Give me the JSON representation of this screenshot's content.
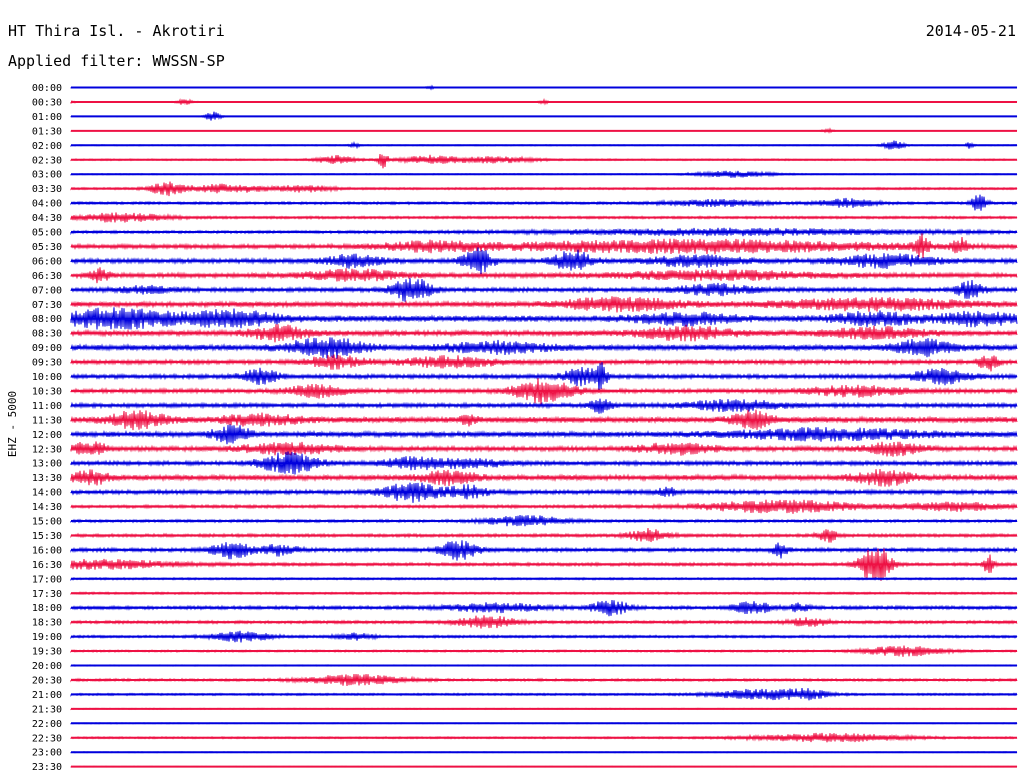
{
  "chart_data": {
    "type": "line",
    "title": "HT Thira Isl. - Akrotiri",
    "date": "2014-05-21",
    "subtitle": "Applied filter: WWSSN-SP",
    "ylabel": "EHZ - 5000",
    "xlabel": "",
    "series_colors": [
      "#0000dd",
      "#ee1144"
    ],
    "rows": [
      {
        "label": "00:00",
        "noise": 0.3,
        "events": [
          [
            0.38,
            2,
            0.004
          ]
        ]
      },
      {
        "label": "00:30",
        "noise": 0.2,
        "events": [
          [
            0.0,
            2,
            0.004
          ],
          [
            0.12,
            3,
            0.01
          ],
          [
            0.5,
            2,
            0.006
          ]
        ]
      },
      {
        "label": "01:00",
        "noise": 0.25,
        "events": [
          [
            0.15,
            5,
            0.008
          ]
        ]
      },
      {
        "label": "01:30",
        "noise": 0.2,
        "events": [
          [
            0.8,
            2,
            0.006
          ]
        ]
      },
      {
        "label": "02:00",
        "noise": 0.6,
        "events": [
          [
            0.3,
            2,
            0.005
          ],
          [
            0.87,
            5,
            0.01
          ],
          [
            0.95,
            3,
            0.004
          ]
        ]
      },
      {
        "label": "02:30",
        "noise": 0.8,
        "events": [
          [
            0.28,
            4,
            0.02
          ],
          [
            0.33,
            8,
            0.005
          ],
          [
            0.38,
            4,
            0.03
          ],
          [
            0.45,
            3,
            0.04
          ]
        ]
      },
      {
        "label": "03:00",
        "noise": 0.6,
        "events": [
          [
            0.7,
            3,
            0.04
          ]
        ]
      },
      {
        "label": "03:30",
        "noise": 1.0,
        "events": [
          [
            0.1,
            6,
            0.015
          ],
          [
            0.16,
            4,
            0.05
          ],
          [
            0.25,
            3,
            0.03
          ]
        ]
      },
      {
        "label": "04:00",
        "noise": 1.2,
        "events": [
          [
            0.68,
            3,
            0.05
          ],
          [
            0.82,
            4,
            0.03
          ],
          [
            0.96,
            9,
            0.008
          ]
        ]
      },
      {
        "label": "04:30",
        "noise": 1.2,
        "events": [
          [
            0.05,
            4,
            0.05
          ]
        ]
      },
      {
        "label": "05:00",
        "noise": 1.3,
        "events": [
          [
            0.7,
            3,
            0.2
          ]
        ]
      },
      {
        "label": "05:30",
        "noise": 2.0,
        "events": [
          [
            0.38,
            4,
            0.05
          ],
          [
            0.66,
            6,
            0.2
          ],
          [
            0.9,
            10,
            0.008
          ],
          [
            0.94,
            7,
            0.008
          ]
        ]
      },
      {
        "label": "06:00",
        "noise": 2.2,
        "events": [
          [
            0.3,
            6,
            0.03
          ],
          [
            0.43,
            12,
            0.015
          ],
          [
            0.53,
            10,
            0.02
          ],
          [
            0.66,
            5,
            0.05
          ],
          [
            0.86,
            6,
            0.05
          ]
        ]
      },
      {
        "label": "06:30",
        "noise": 2.2,
        "events": [
          [
            0.03,
            6,
            0.01
          ],
          [
            0.3,
            5,
            0.05
          ],
          [
            0.68,
            4,
            0.1
          ]
        ]
      },
      {
        "label": "07:00",
        "noise": 2.0,
        "events": [
          [
            0.08,
            3,
            0.03
          ],
          [
            0.36,
            12,
            0.02
          ],
          [
            0.68,
            5,
            0.04
          ],
          [
            0.95,
            8,
            0.015
          ]
        ]
      },
      {
        "label": "07:30",
        "noise": 2.5,
        "events": [
          [
            0.58,
            6,
            0.06
          ],
          [
            0.85,
            5,
            0.1
          ]
        ]
      },
      {
        "label": "08:00",
        "noise": 3.0,
        "events": [
          [
            0.05,
            9,
            0.06
          ],
          [
            0.17,
            7,
            0.05
          ],
          [
            0.65,
            5,
            0.05
          ],
          [
            0.85,
            6,
            0.04
          ],
          [
            0.96,
            6,
            0.04
          ]
        ]
      },
      {
        "label": "08:30",
        "noise": 2.5,
        "events": [
          [
            0.22,
            7,
            0.03
          ],
          [
            0.65,
            6,
            0.05
          ],
          [
            0.85,
            5,
            0.05
          ]
        ]
      },
      {
        "label": "09:00",
        "noise": 2.8,
        "events": [
          [
            0.27,
            9,
            0.04
          ],
          [
            0.45,
            5,
            0.05
          ],
          [
            0.9,
            7,
            0.03
          ]
        ]
      },
      {
        "label": "09:30",
        "noise": 2.0,
        "events": [
          [
            0.28,
            6,
            0.03
          ],
          [
            0.4,
            5,
            0.05
          ],
          [
            0.97,
            8,
            0.01
          ]
        ]
      },
      {
        "label": "10:00",
        "noise": 2.0,
        "events": [
          [
            0.2,
            7,
            0.02
          ],
          [
            0.54,
            8,
            0.02
          ],
          [
            0.56,
            12,
            0.006
          ],
          [
            0.92,
            7,
            0.03
          ]
        ]
      },
      {
        "label": "10:30",
        "noise": 2.0,
        "events": [
          [
            0.26,
            6,
            0.03
          ],
          [
            0.5,
            12,
            0.03
          ],
          [
            0.83,
            5,
            0.05
          ]
        ]
      },
      {
        "label": "11:00",
        "noise": 2.0,
        "events": [
          [
            0.7,
            5,
            0.05
          ],
          [
            0.56,
            8,
            0.01
          ]
        ]
      },
      {
        "label": "11:30",
        "noise": 2.8,
        "events": [
          [
            0.07,
            8,
            0.03
          ],
          [
            0.2,
            5,
            0.04
          ],
          [
            0.42,
            4,
            0.01
          ],
          [
            0.72,
            8,
            0.02
          ]
        ]
      },
      {
        "label": "12:00",
        "noise": 2.5,
        "events": [
          [
            0.17,
            8,
            0.02
          ],
          [
            0.8,
            5,
            0.1
          ]
        ]
      },
      {
        "label": "12:30",
        "noise": 2.2,
        "events": [
          [
            0.02,
            6,
            0.02
          ],
          [
            0.23,
            5,
            0.05
          ],
          [
            0.64,
            5,
            0.04
          ],
          [
            0.87,
            6,
            0.03
          ]
        ]
      },
      {
        "label": "13:00",
        "noise": 2.0,
        "events": [
          [
            0.23,
            10,
            0.03
          ],
          [
            0.36,
            5,
            0.03
          ],
          [
            0.42,
            4,
            0.04
          ]
        ]
      },
      {
        "label": "13:30",
        "noise": 2.5,
        "events": [
          [
            0.02,
            7,
            0.02
          ],
          [
            0.4,
            6,
            0.03
          ],
          [
            0.86,
            7,
            0.03
          ]
        ]
      },
      {
        "label": "14:00",
        "noise": 2.0,
        "events": [
          [
            0.36,
            9,
            0.03
          ],
          [
            0.42,
            6,
            0.02
          ],
          [
            0.63,
            4,
            0.01
          ]
        ]
      },
      {
        "label": "14:30",
        "noise": 1.5,
        "events": [
          [
            0.75,
            6,
            0.08
          ],
          [
            0.93,
            4,
            0.05
          ]
        ]
      },
      {
        "label": "15:00",
        "noise": 1.3,
        "events": [
          [
            0.48,
            5,
            0.04
          ]
        ]
      },
      {
        "label": "15:30",
        "noise": 1.5,
        "events": [
          [
            0.61,
            6,
            0.02
          ],
          [
            0.8,
            7,
            0.01
          ]
        ]
      },
      {
        "label": "16:00",
        "noise": 1.8,
        "events": [
          [
            0.17,
            8,
            0.02
          ],
          [
            0.22,
            5,
            0.02
          ],
          [
            0.41,
            9,
            0.02
          ],
          [
            0.75,
            7,
            0.008
          ]
        ]
      },
      {
        "label": "16:30",
        "noise": 1.5,
        "events": [
          [
            0.03,
            4,
            0.08
          ],
          [
            0.85,
            22,
            0.015
          ],
          [
            0.97,
            10,
            0.005
          ]
        ]
      },
      {
        "label": "17:00",
        "noise": 1.0,
        "events": []
      },
      {
        "label": "17:30",
        "noise": 1.0,
        "events": []
      },
      {
        "label": "18:00",
        "noise": 1.6,
        "events": [
          [
            0.45,
            4,
            0.05
          ],
          [
            0.57,
            7,
            0.02
          ],
          [
            0.72,
            6,
            0.02
          ],
          [
            0.77,
            4,
            0.01
          ]
        ]
      },
      {
        "label": "18:30",
        "noise": 1.4,
        "events": [
          [
            0.44,
            6,
            0.03
          ],
          [
            0.78,
            4,
            0.02
          ]
        ]
      },
      {
        "label": "19:00",
        "noise": 1.2,
        "events": [
          [
            0.18,
            5,
            0.03
          ],
          [
            0.3,
            3,
            0.02
          ]
        ]
      },
      {
        "label": "19:30",
        "noise": 1.0,
        "events": [
          [
            0.88,
            5,
            0.04
          ]
        ]
      },
      {
        "label": "20:00",
        "noise": 0.6,
        "events": []
      },
      {
        "label": "20:30",
        "noise": 1.2,
        "events": [
          [
            0.3,
            5,
            0.05
          ]
        ]
      },
      {
        "label": "21:00",
        "noise": 1.0,
        "events": [
          [
            0.73,
            5,
            0.05
          ],
          [
            0.78,
            4,
            0.02
          ]
        ]
      },
      {
        "label": "21:30",
        "noise": 0.6,
        "events": []
      },
      {
        "label": "22:00",
        "noise": 0.5,
        "events": []
      },
      {
        "label": "22:30",
        "noise": 0.9,
        "events": [
          [
            0.8,
            4,
            0.08
          ]
        ]
      },
      {
        "label": "23:00",
        "noise": 0.5,
        "events": []
      },
      {
        "label": "23:30",
        "noise": 0.4,
        "events": []
      }
    ]
  }
}
